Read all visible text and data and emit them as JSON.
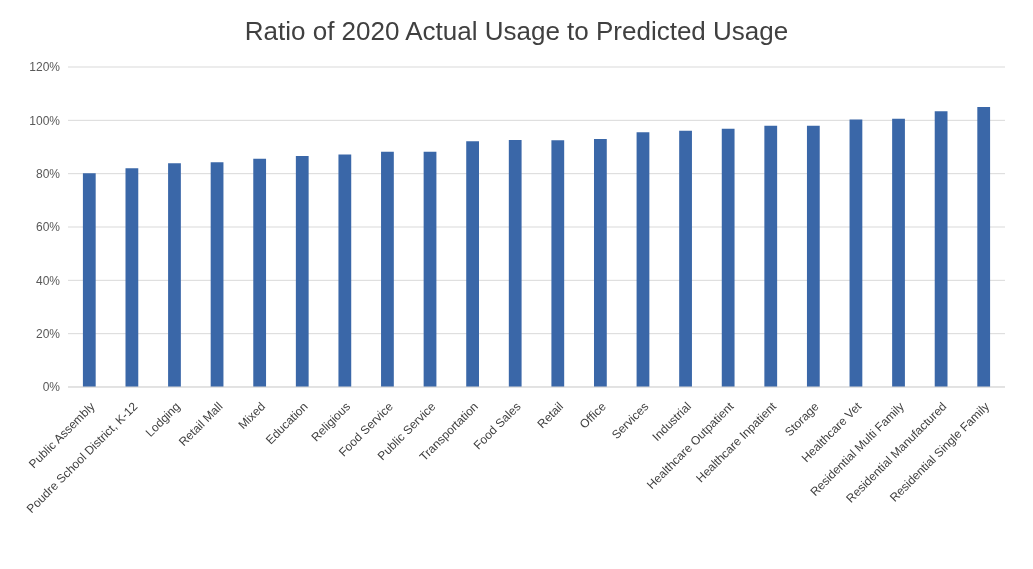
{
  "chart_data": {
    "type": "bar",
    "title": "Ratio of 2020 Actual Usage to Predicted Usage",
    "categories": [
      "Public Assembly",
      "Poudre School District, K-12",
      "Lodging",
      "Retail Mall",
      "Mixed",
      "Education",
      "Religious",
      "Food Service",
      "Public Service",
      "Transportation",
      "Food Sales",
      "Retail",
      "Office",
      "Services",
      "Industrial",
      "Healthcare Outpatient",
      "Healthcare Inpatient",
      "Storage",
      "Healthcare Vet",
      "Residential Multi Family",
      "Residential Manufactured",
      "Residential Single Family"
    ],
    "values": [
      80.2,
      82,
      83.9,
      84.3,
      85.6,
      86.6,
      87.2,
      88.2,
      88.2,
      92.2,
      92.6,
      92.5,
      93,
      95.5,
      96.1,
      96.8,
      98,
      98,
      100.3,
      100.6,
      103.4,
      105
    ],
    "color": "#3a67a8",
    "ylim": [
      0,
      120
    ],
    "yticks": [
      {
        "value": 0,
        "label": "0%"
      },
      {
        "value": 20,
        "label": "20%"
      },
      {
        "value": 40,
        "label": "40%"
      },
      {
        "value": 60,
        "label": "60%"
      },
      {
        "value": 80,
        "label": "80%"
      },
      {
        "value": 100,
        "label": "100%"
      },
      {
        "value": 120,
        "label": "120%"
      }
    ],
    "grid": "y"
  }
}
